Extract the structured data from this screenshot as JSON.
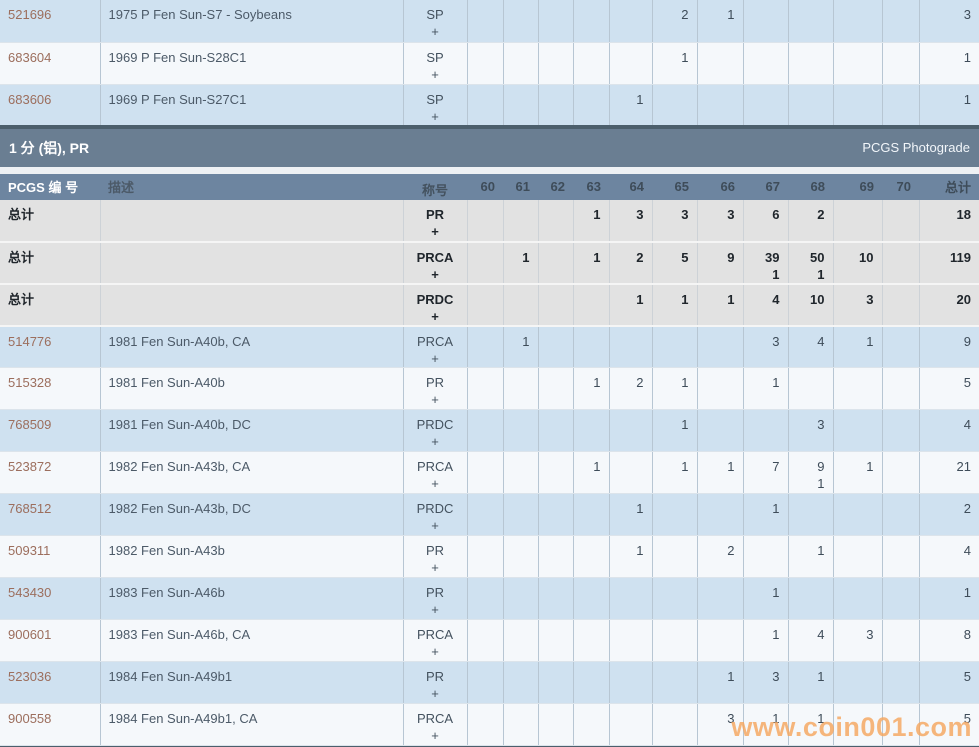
{
  "watermark": "www.coin001.com",
  "colors": {
    "section_bar_bg": "#6a7e92",
    "header_row_bg": "#6d85a0",
    "row_blue": "#cfe1f0",
    "row_white": "#f5f8fb",
    "totals_row_bg": "#e2e2e2",
    "dark_divider": "#4c5f6c",
    "id_link": "#9c6e5d",
    "watermark_orange": "#f6a75f"
  },
  "grade_list": [
    "60",
    "61",
    "62",
    "63",
    "64",
    "65",
    "66",
    "67",
    "68",
    "69",
    "70"
  ],
  "top_table": {
    "rows": [
      {
        "id": "521696",
        "desc": "1975 P Fen Sun-S7 - Soybeans",
        "designation": "SP",
        "plus": "+",
        "shade": "blue",
        "grades": {
          "65": {
            "v": "2"
          },
          "66": {
            "v": "1"
          }
        },
        "total": "3"
      },
      {
        "id": "683604",
        "desc": "1969 P Fen Sun-S28C1",
        "designation": "SP",
        "plus": "+",
        "shade": "white",
        "grades": {
          "65": {
            "v": "1"
          }
        },
        "total": "1"
      },
      {
        "id": "683606",
        "desc": "1969 P Fen Sun-S27C1",
        "designation": "SP",
        "plus": "+",
        "shade": "blue",
        "grades": {
          "64": {
            "v": "1"
          }
        },
        "total": "1"
      }
    ]
  },
  "section_header": {
    "title": "1 分 (铝), PR",
    "photograde_link": "PCGS Photograde"
  },
  "main_table": {
    "columns": {
      "id": "PCGS 编 号",
      "desc": "描述",
      "designation": "称号",
      "grades": [
        "60",
        "61",
        "62",
        "63",
        "64",
        "65",
        "66",
        "67",
        "68",
        "69",
        "70"
      ],
      "total": "总计"
    },
    "total_rows": [
      {
        "label": "总计",
        "desc": "",
        "designation": "PR",
        "plus": "+",
        "grades": {
          "63": {
            "v": "1"
          },
          "64": {
            "v": "3"
          },
          "65": {
            "v": "3"
          },
          "66": {
            "v": "3"
          },
          "67": {
            "v": "6"
          },
          "68": {
            "v": "2"
          }
        },
        "total": "18"
      },
      {
        "label": "总计",
        "desc": "",
        "designation": "PRCA",
        "plus": "+",
        "grades": {
          "61": {
            "v": "1"
          },
          "63": {
            "v": "1"
          },
          "64": {
            "v": "2"
          },
          "65": {
            "v": "5"
          },
          "66": {
            "v": "9"
          },
          "67": {
            "v": "39",
            "p": "1"
          },
          "68": {
            "v": "50",
            "p": "1"
          },
          "69": {
            "v": "10"
          }
        },
        "total": "119"
      },
      {
        "label": "总计",
        "desc": "",
        "designation": "PRDC",
        "plus": "+",
        "grades": {
          "64": {
            "v": "1"
          },
          "65": {
            "v": "1"
          },
          "66": {
            "v": "1"
          },
          "67": {
            "v": "4"
          },
          "68": {
            "v": "10"
          },
          "69": {
            "v": "3"
          }
        },
        "total": "20"
      }
    ],
    "rows": [
      {
        "id": "514776",
        "desc": "1981 Fen Sun-A40b, CA",
        "designation": "PRCA",
        "plus": "+",
        "shade": "blue",
        "grades": {
          "61": {
            "v": "1"
          },
          "67": {
            "v": "3"
          },
          "68": {
            "v": "4"
          },
          "69": {
            "v": "1"
          }
        },
        "total": "9"
      },
      {
        "id": "515328",
        "desc": "1981 Fen Sun-A40b",
        "designation": "PR",
        "plus": "+",
        "shade": "white",
        "grades": {
          "63": {
            "v": "1"
          },
          "64": {
            "v": "2"
          },
          "65": {
            "v": "1"
          },
          "67": {
            "v": "1"
          }
        },
        "total": "5"
      },
      {
        "id": "768509",
        "desc": "1981 Fen Sun-A40b, DC",
        "designation": "PRDC",
        "plus": "+",
        "shade": "blue",
        "grades": {
          "65": {
            "v": "1"
          },
          "68": {
            "v": "3"
          }
        },
        "total": "4"
      },
      {
        "id": "523872",
        "desc": "1982 Fen Sun-A43b, CA",
        "designation": "PRCA",
        "plus": "+",
        "shade": "white",
        "grades": {
          "63": {
            "v": "1"
          },
          "65": {
            "v": "1"
          },
          "66": {
            "v": "1"
          },
          "67": {
            "v": "7"
          },
          "68": {
            "v": "9",
            "p": "1"
          },
          "69": {
            "v": "1"
          }
        },
        "total": "21"
      },
      {
        "id": "768512",
        "desc": "1982 Fen Sun-A43b, DC",
        "designation": "PRDC",
        "plus": "+",
        "shade": "blue",
        "grades": {
          "64": {
            "v": "1"
          },
          "67": {
            "v": "1"
          }
        },
        "total": "2"
      },
      {
        "id": "509311",
        "desc": "1982 Fen Sun-A43b",
        "designation": "PR",
        "plus": "+",
        "shade": "white",
        "grades": {
          "64": {
            "v": "1"
          },
          "66": {
            "v": "2"
          },
          "68": {
            "v": "1"
          }
        },
        "total": "4"
      },
      {
        "id": "543430",
        "desc": "1983 Fen Sun-A46b",
        "designation": "PR",
        "plus": "+",
        "shade": "blue",
        "grades": {
          "67": {
            "v": "1"
          }
        },
        "total": "1"
      },
      {
        "id": "900601",
        "desc": "1983 Fen Sun-A46b, CA",
        "designation": "PRCA",
        "plus": "+",
        "shade": "white",
        "grades": {
          "67": {
            "v": "1"
          },
          "68": {
            "v": "4"
          },
          "69": {
            "v": "3"
          }
        },
        "total": "8"
      },
      {
        "id": "523036",
        "desc": "1984 Fen Sun-A49b1",
        "designation": "PR",
        "plus": "+",
        "shade": "blue",
        "grades": {
          "66": {
            "v": "1"
          },
          "67": {
            "v": "3"
          },
          "68": {
            "v": "1"
          }
        },
        "total": "5"
      },
      {
        "id": "900558",
        "desc": "1984 Fen Sun-A49b1, CA",
        "designation": "PRCA",
        "plus": "+",
        "shade": "white",
        "grades": {
          "66": {
            "v": "3"
          },
          "67": {
            "v": "1"
          },
          "68": {
            "v": "1"
          }
        },
        "total": "5"
      }
    ]
  }
}
